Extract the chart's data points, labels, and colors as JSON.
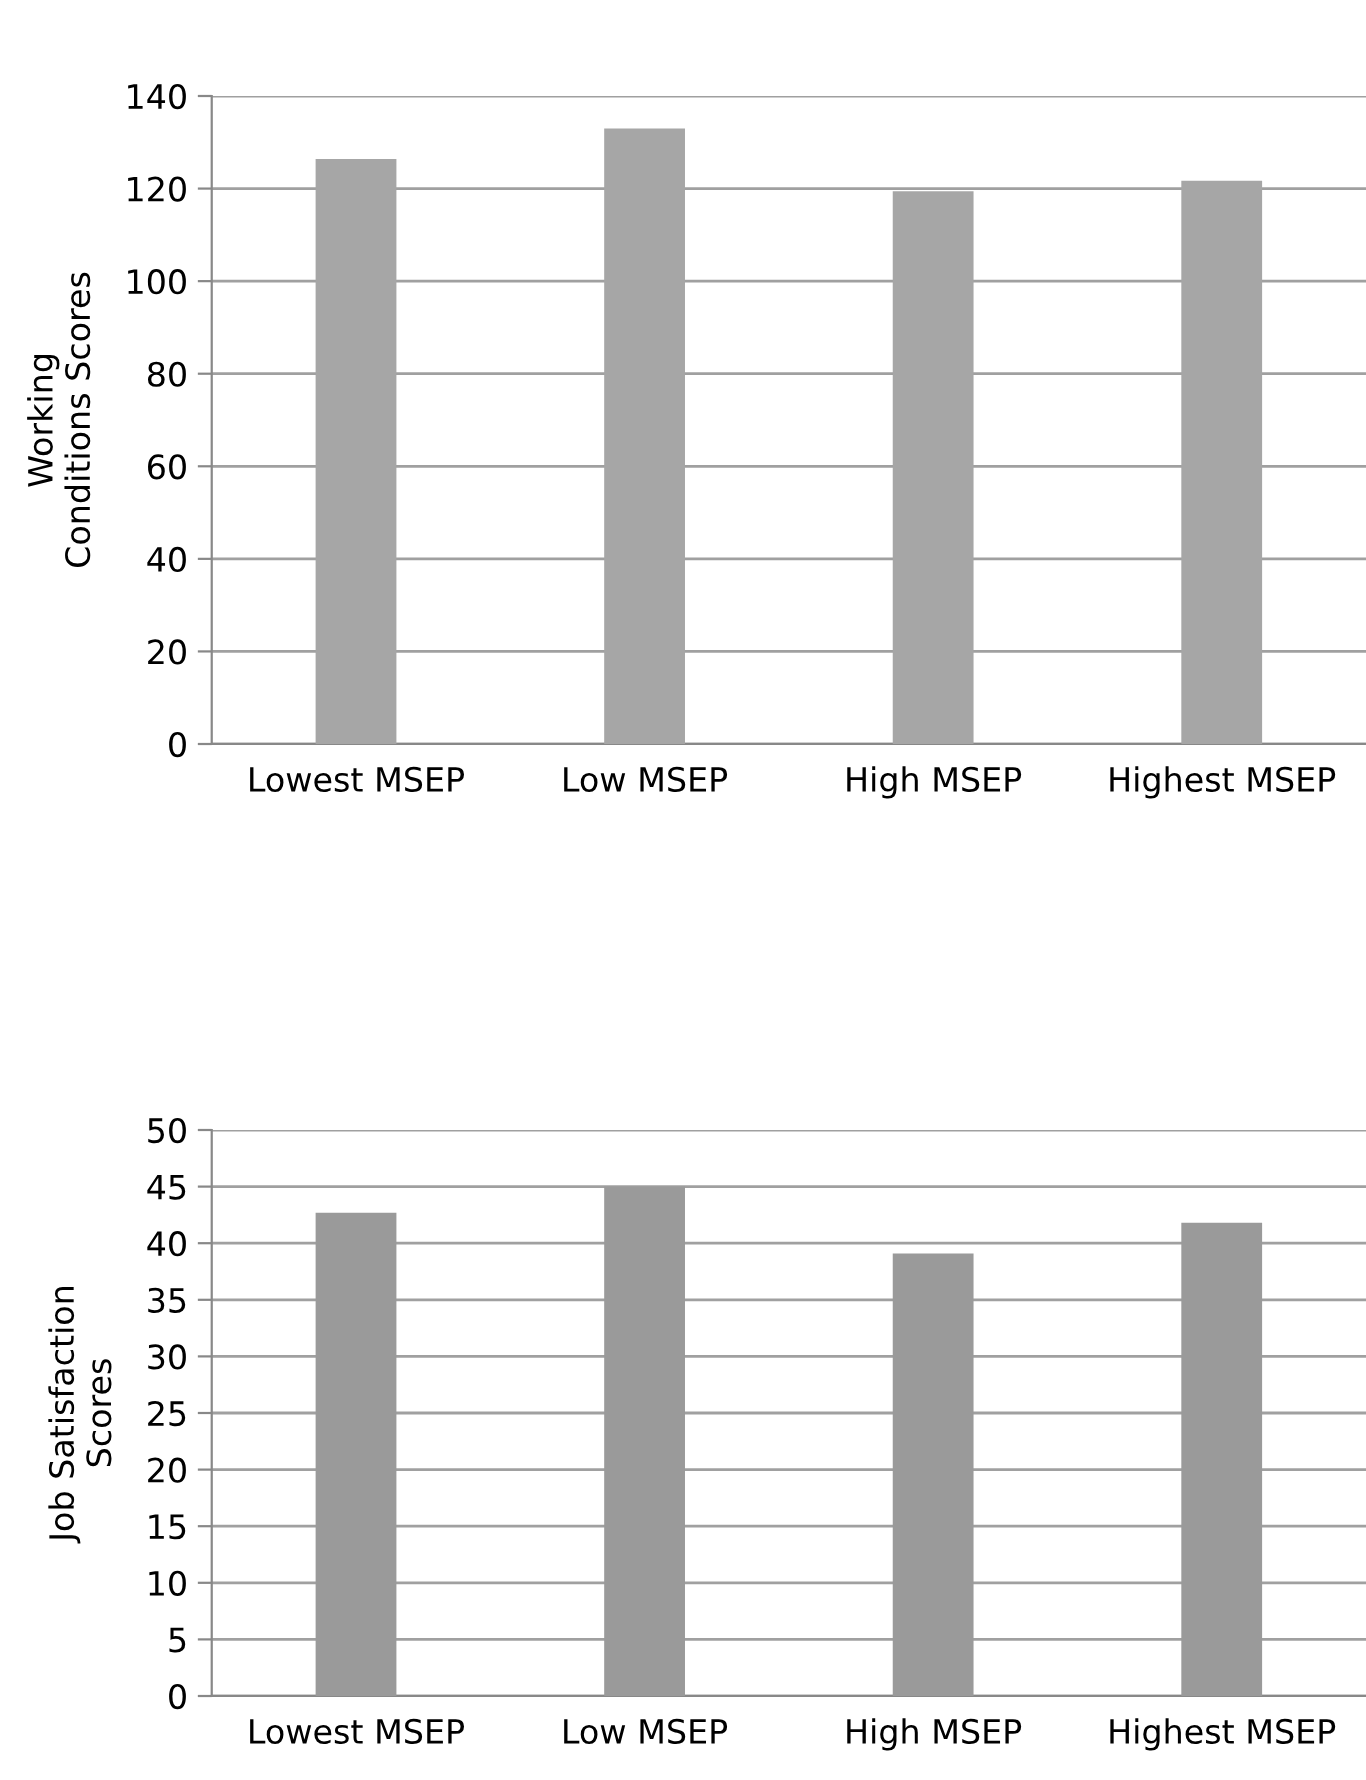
{
  "chart_data": [
    {
      "type": "bar",
      "ylabel": "Working\nConditions Scores",
      "categories": [
        "Lowest MSEP",
        "Low MSEP",
        "High MSEP",
        "Highest MSEP"
      ],
      "values": [
        126.4,
        133,
        119.4,
        121.7
      ],
      "color": "#a6a6a6",
      "ylim": [
        0,
        140
      ],
      "yticks": [
        0,
        20,
        40,
        60,
        80,
        100,
        120,
        140
      ],
      "grid": "y"
    },
    {
      "type": "bar",
      "ylabel": "Job Satisfaction\nScores",
      "categories": [
        "Lowest MSEP",
        "Low MSEP",
        "High MSEP",
        "Highest MSEP"
      ],
      "values": [
        42.7,
        45,
        39.1,
        41.8
      ],
      "color": "#9a9a9a",
      "ylim": [
        0,
        50
      ],
      "yticks": [
        0,
        5,
        10,
        15,
        20,
        25,
        30,
        35,
        40,
        45,
        50
      ],
      "grid": "y"
    }
  ]
}
